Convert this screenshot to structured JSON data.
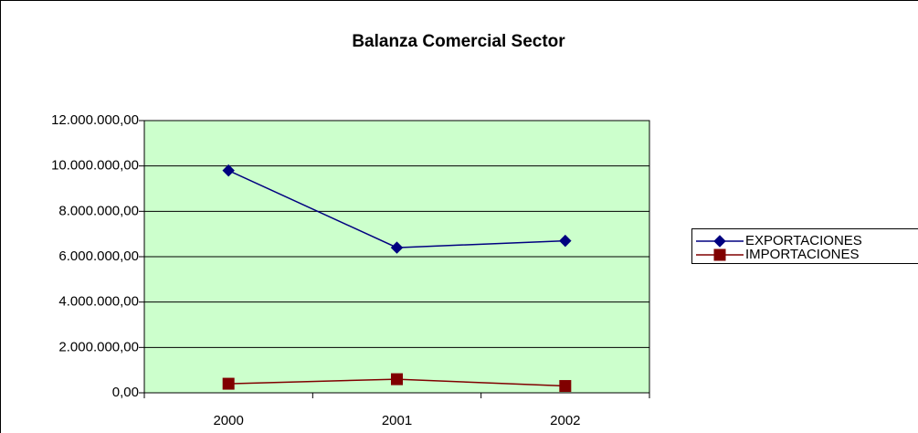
{
  "chart_data": {
    "type": "line",
    "title": "Balanza Comercial Sector",
    "categories": [
      "2000",
      "2001",
      "2002"
    ],
    "series": [
      {
        "name": "EXPORTACIONES",
        "color": "#000080",
        "marker": "diamond",
        "values": [
          9800000,
          6400000,
          6700000
        ]
      },
      {
        "name": "IMPORTACIONES",
        "color": "#800000",
        "marker": "square",
        "values": [
          400000,
          600000,
          300000
        ]
      }
    ],
    "ylim": [
      0,
      12000000
    ],
    "yticks": [
      {
        "value": 0,
        "label": "0,00"
      },
      {
        "value": 2000000,
        "label": "2.000.000,00"
      },
      {
        "value": 4000000,
        "label": "4.000.000,00"
      },
      {
        "value": 6000000,
        "label": "6.000.000,00"
      },
      {
        "value": 8000000,
        "label": "8.000.000,00"
      },
      {
        "value": 10000000,
        "label": "10.000.000,00"
      },
      {
        "value": 12000000,
        "label": "12.000.000,00"
      }
    ],
    "grid": true,
    "plot_background": "#ccffcc",
    "legend": "right"
  }
}
